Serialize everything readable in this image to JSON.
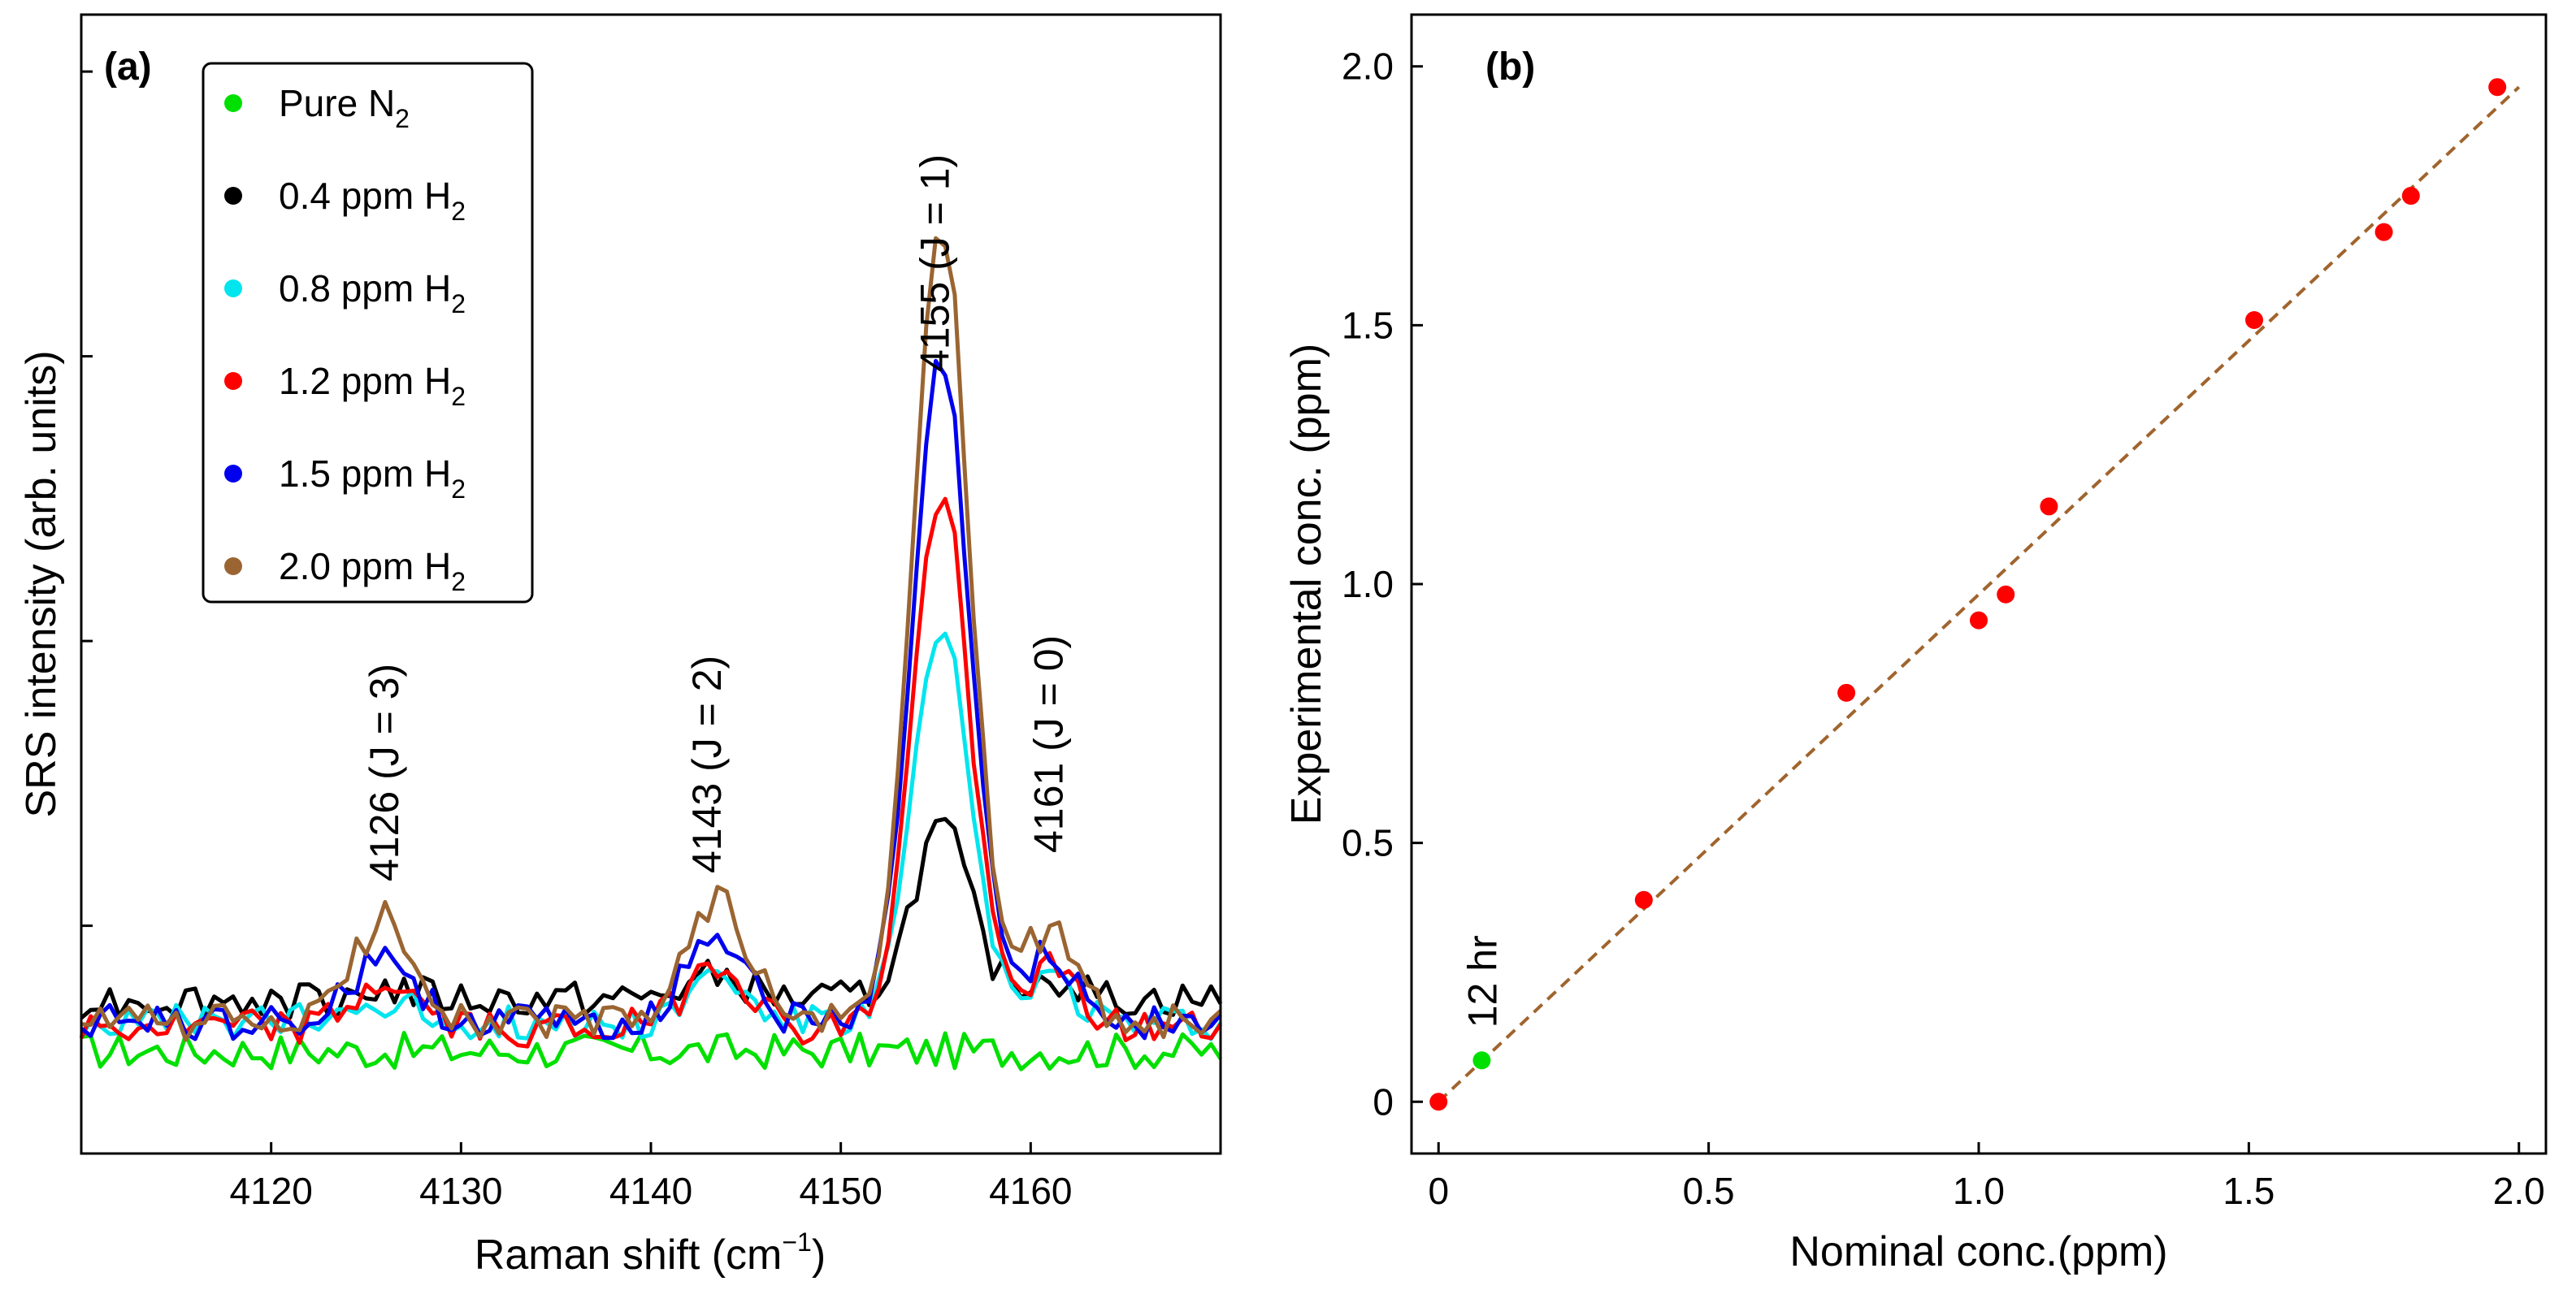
{
  "chart_data": [
    {
      "panel": "(a)",
      "type": "line",
      "xlabel": "Raman shift (cm",
      "xlabel_sup": "−1",
      "xlabel_close": ")",
      "ylabel": "SRS intensity (arb. units)",
      "xlim": [
        4110,
        4170
      ],
      "ylim": [
        0,
        100
      ],
      "x_ticks": [
        "4120",
        "4130",
        "4140",
        "4150",
        "4160"
      ],
      "y_tick_labels_shown": false,
      "legend_position": "top-left",
      "peak_labels": [
        {
          "x": 4126,
          "text": "4126 (J = 3)"
        },
        {
          "x": 4143,
          "text": "4143 (J = 2)"
        },
        {
          "x": 4155,
          "text": "4155 (J = 1)"
        },
        {
          "x": 4161,
          "text": "4161 (J = 0)"
        }
      ],
      "series": [
        {
          "name": "Pure N",
          "sub": "2",
          "color": "#00e000",
          "amp": [
            0,
            0,
            0,
            0
          ],
          "base": 9.0
        },
        {
          "name": "0.4 ppm H",
          "sub": "2",
          "color": "#000000",
          "amp": [
            1,
            2,
            15,
            2
          ],
          "base": 13.5
        },
        {
          "name": "0.8 ppm H",
          "sub": "2",
          "color": "#00e5ee",
          "amp": [
            2,
            4,
            34,
            4
          ],
          "base": 11.5
        },
        {
          "name": "1.2 ppm H",
          "sub": "2",
          "color": "#ff0000",
          "amp": [
            4,
            6,
            47,
            5
          ],
          "base": 11.0
        },
        {
          "name": "1.5 ppm H",
          "sub": "2",
          "color": "#0000ee",
          "amp": [
            6,
            8,
            58,
            6
          ],
          "base": 11.5
        },
        {
          "name": "2.0 ppm H",
          "sub": "2",
          "color": "#9a6532",
          "amp": [
            9,
            11,
            70,
            8
          ],
          "base": 11.5
        }
      ]
    },
    {
      "panel": "(b)",
      "type": "scatter",
      "xlabel": "Nominal conc.(ppm)",
      "ylabel": "Experimental conc. (ppm)",
      "xlim": [
        -0.05,
        2.05
      ],
      "ylim": [
        -0.1,
        2.1
      ],
      "x_ticks": [
        "0",
        "0.5",
        "1.0",
        "1.5",
        "2.0"
      ],
      "y_ticks": [
        "0",
        "0.5",
        "1.0",
        "1.5",
        "2.0"
      ],
      "points": [
        {
          "x": 0.0,
          "y": 0.0,
          "color": "#ff0000"
        },
        {
          "x": 0.38,
          "y": 0.39,
          "color": "#ff0000"
        },
        {
          "x": 0.755,
          "y": 0.79,
          "color": "#ff0000"
        },
        {
          "x": 1.0,
          "y": 0.93,
          "color": "#ff0000"
        },
        {
          "x": 1.05,
          "y": 0.98,
          "color": "#ff0000"
        },
        {
          "x": 1.13,
          "y": 1.15,
          "color": "#ff0000"
        },
        {
          "x": 1.51,
          "y": 1.51,
          "color": "#ff0000"
        },
        {
          "x": 1.75,
          "y": 1.68,
          "color": "#ff0000"
        },
        {
          "x": 1.8,
          "y": 1.75,
          "color": "#ff0000"
        },
        {
          "x": 1.96,
          "y": 1.96,
          "color": "#ff0000"
        },
        {
          "x": 0.08,
          "y": 0.08,
          "color": "#00e000"
        }
      ],
      "fit_line": {
        "x": [
          0.0,
          2.0
        ],
        "y": [
          0.0,
          1.96
        ],
        "color": "#a0642d",
        "style": "dashed"
      },
      "annotation": {
        "x": 0.08,
        "text": "12 hr"
      }
    }
  ]
}
